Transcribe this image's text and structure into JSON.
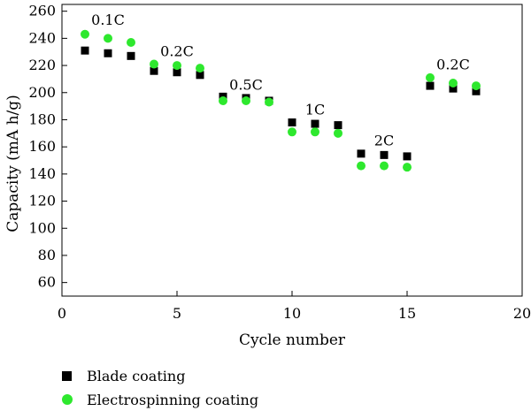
{
  "chart_data": {
    "type": "scatter",
    "xlabel": "Cycle number",
    "ylabel": "Capacity (mA h/g)",
    "xlim": [
      0,
      20
    ],
    "ylim": [
      50,
      265
    ],
    "xticks": [
      0,
      5,
      10,
      15,
      20
    ],
    "yticks": [
      60,
      80,
      100,
      120,
      140,
      160,
      180,
      200,
      220,
      240,
      260
    ],
    "grid": false,
    "legend_position": "bottom-left",
    "series": [
      {
        "name": "Blade coating",
        "marker": "square",
        "color": "#000000",
        "x": [
          1,
          2,
          3,
          4,
          5,
          6,
          7,
          8,
          9,
          10,
          11,
          12,
          13,
          14,
          15,
          16,
          17,
          18
        ],
        "y": [
          231,
          229,
          227,
          216,
          215,
          213,
          197,
          196,
          194,
          178,
          177,
          176,
          155,
          154,
          153,
          205,
          203,
          201
        ]
      },
      {
        "name": "Electrospinning coating",
        "marker": "circle",
        "color": "#2ee82e",
        "x": [
          1,
          2,
          3,
          4,
          5,
          6,
          7,
          8,
          9,
          10,
          11,
          12,
          13,
          14,
          15,
          16,
          17,
          18
        ],
        "y": [
          243,
          240,
          237,
          221,
          220,
          218,
          194,
          194,
          193,
          171,
          171,
          170,
          146,
          146,
          145,
          211,
          207,
          205
        ]
      }
    ],
    "annotations": [
      {
        "text": "0.1C",
        "x": 2.0,
        "y": 250
      },
      {
        "text": "0.2C",
        "x": 5.0,
        "y": 227
      },
      {
        "text": "0.5C",
        "x": 8.0,
        "y": 202
      },
      {
        "text": "1C",
        "x": 11.0,
        "y": 184
      },
      {
        "text": "2C",
        "x": 14.0,
        "y": 161
      },
      {
        "text": "0.2C",
        "x": 17.0,
        "y": 217
      }
    ]
  }
}
